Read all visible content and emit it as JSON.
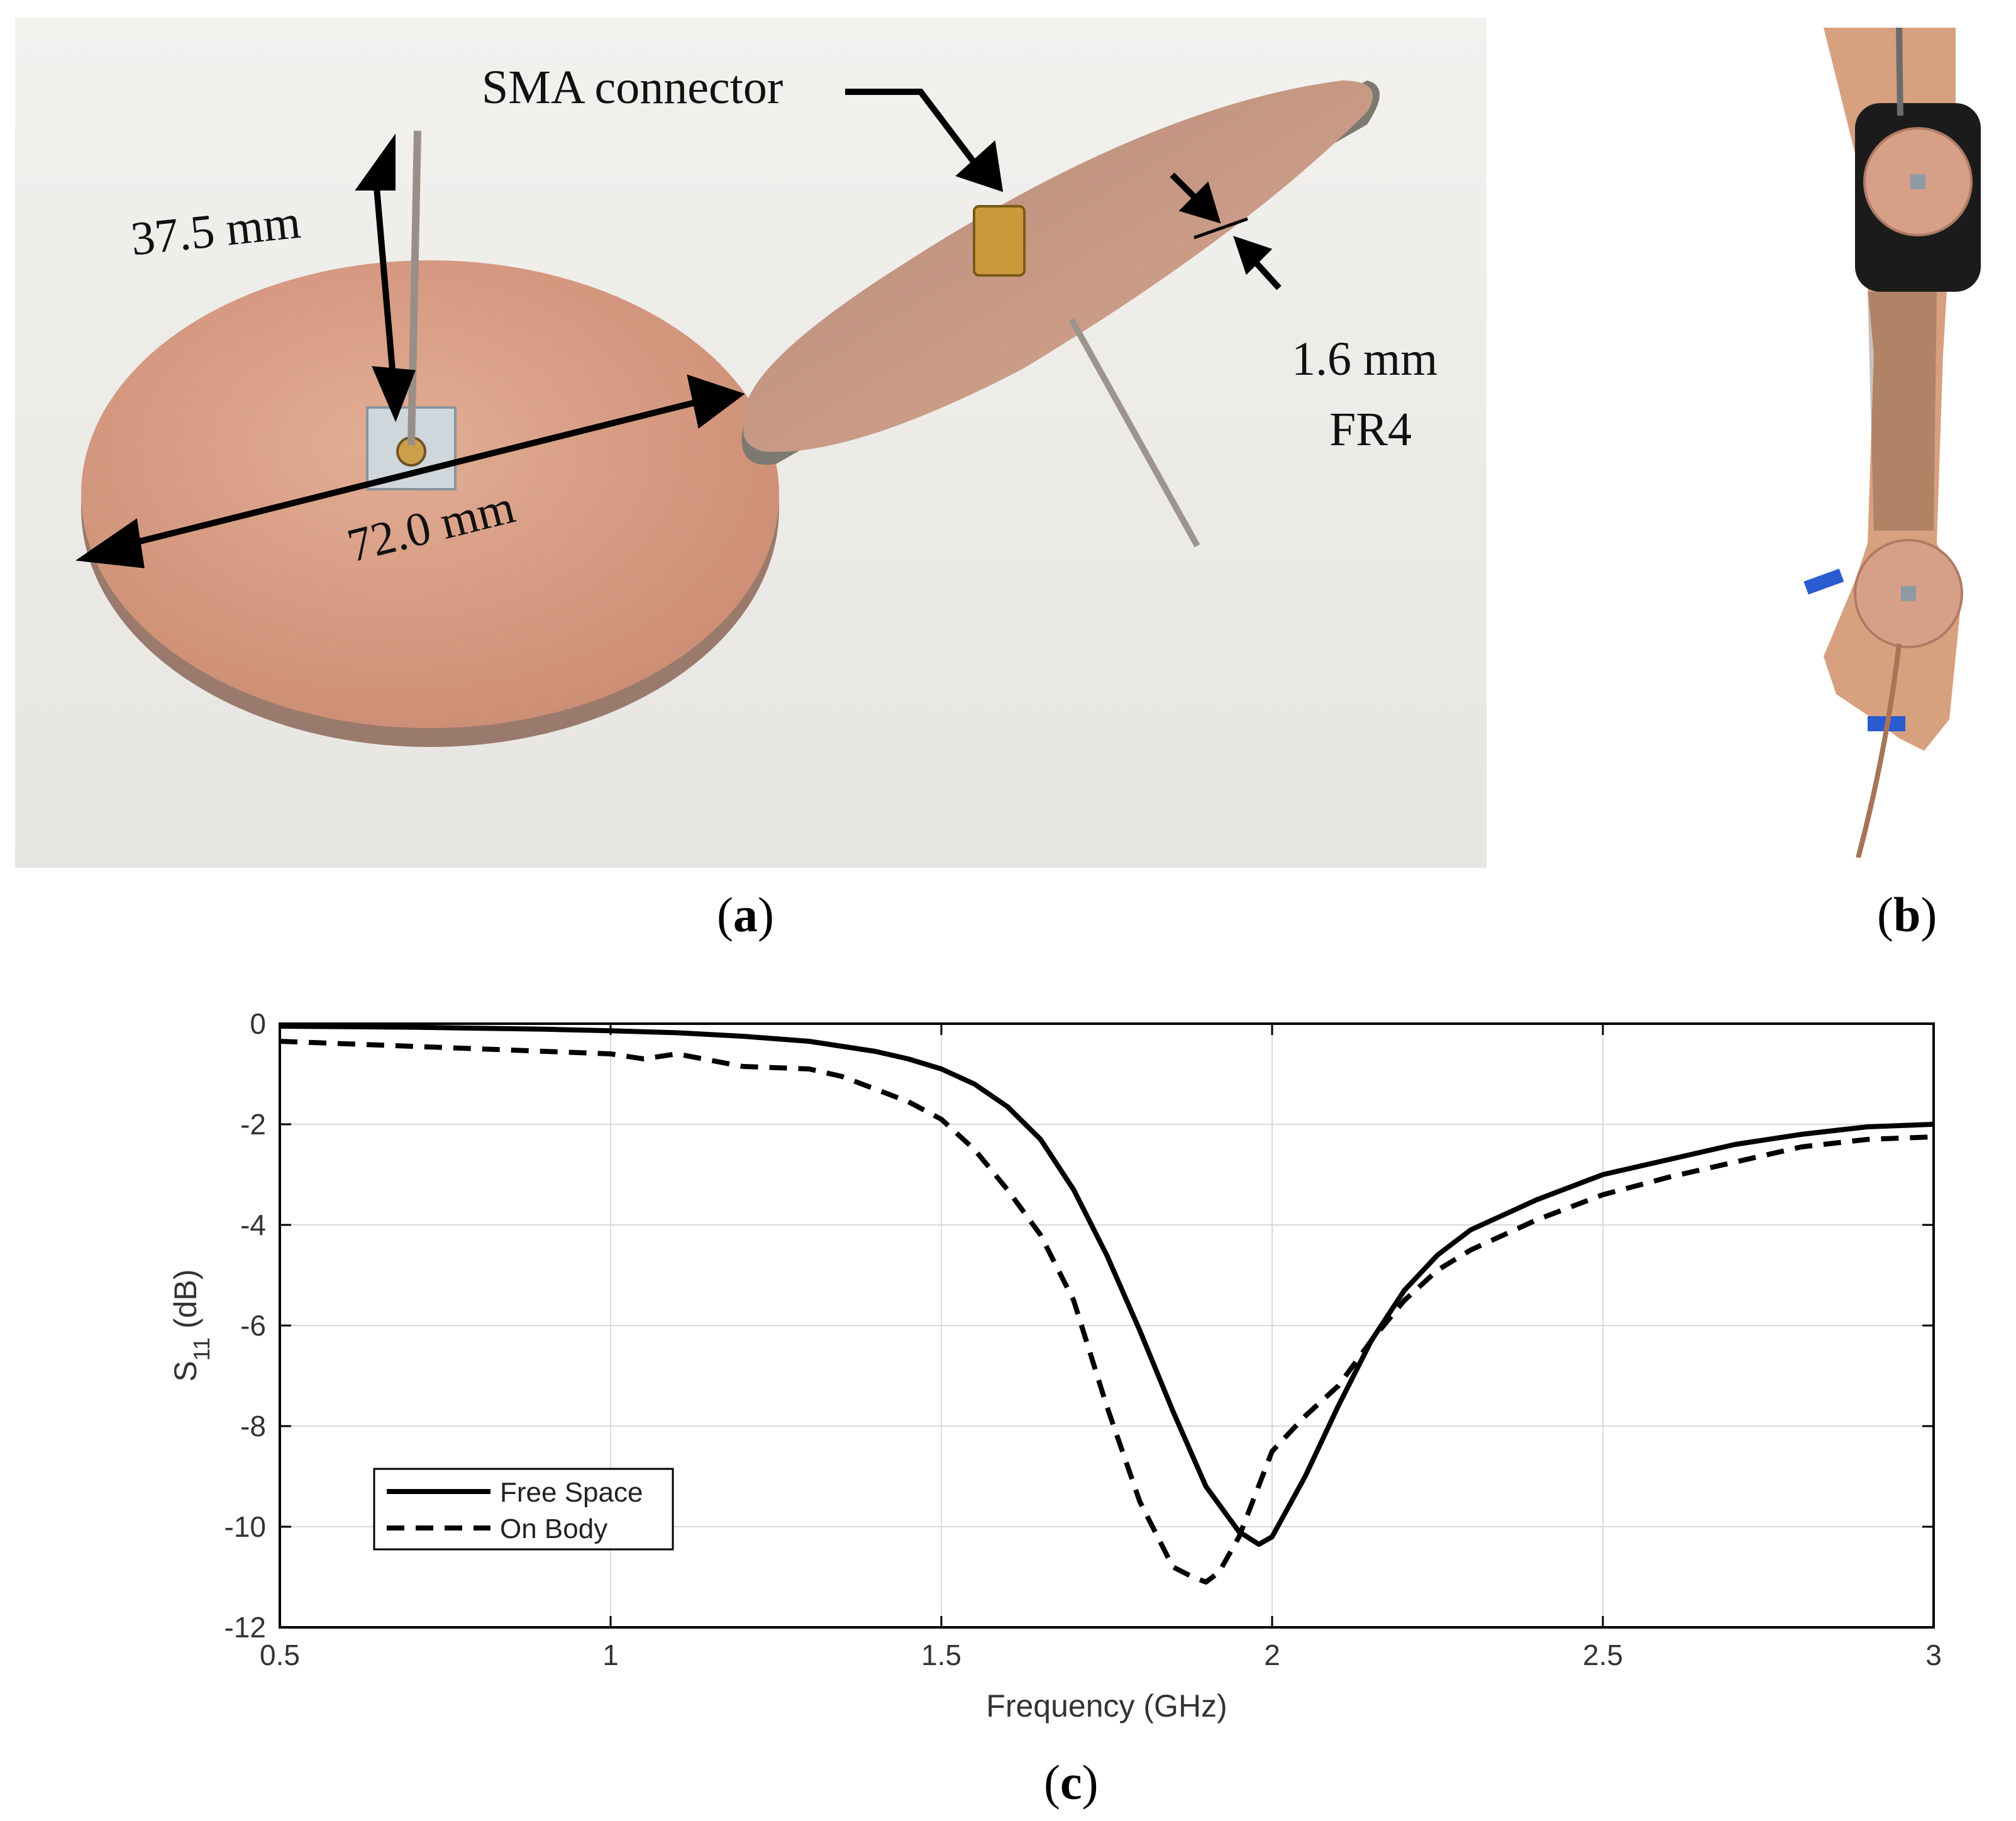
{
  "panels": {
    "a": {
      "caption_open": "(",
      "caption_letter": "a",
      "caption_close": ")",
      "annotations": {
        "sma": "SMA connector",
        "height": "37.5 mm",
        "diameter": "72.0 mm",
        "thickness": "1.6 mm",
        "substrate": "FR4"
      }
    },
    "b": {
      "caption_open": "(",
      "caption_letter": "b",
      "caption_close": ")"
    },
    "c": {
      "caption_open": "(",
      "caption_letter": "c",
      "caption_close": ")"
    }
  },
  "colors": {
    "copper": "#d49a80",
    "copper_dark": "#b97e66",
    "background_photo": "#ecebe8",
    "strap": "#1b1b1b",
    "tape": "#2a5bd1",
    "skin": "#d7a07e"
  },
  "chart_data": {
    "type": "line",
    "xlabel": "Frequency (GHz)",
    "ylabel_main": "S",
    "ylabel_sub": "11",
    "ylabel_unit": " (dB)",
    "xlim": [
      0.5,
      3
    ],
    "ylim": [
      -12,
      0
    ],
    "xticks": [
      0.5,
      1,
      1.5,
      2,
      2.5,
      3
    ],
    "xtick_labels": [
      "0.5",
      "1",
      "1.5",
      "2",
      "2.5",
      "3"
    ],
    "yticks": [
      0,
      -2,
      -4,
      -6,
      -8,
      -10,
      -12
    ],
    "ytick_labels": [
      "0",
      "-2",
      "-4",
      "-6",
      "-8",
      "-10",
      "-12"
    ],
    "grid": true,
    "legend_position": "lower-left",
    "series": [
      {
        "name": "Free Space",
        "style": "solid",
        "x": [
          0.5,
          0.6,
          0.7,
          0.8,
          0.9,
          1.0,
          1.1,
          1.2,
          1.3,
          1.4,
          1.45,
          1.5,
          1.55,
          1.6,
          1.65,
          1.7,
          1.75,
          1.8,
          1.85,
          1.9,
          1.95,
          1.98,
          2.0,
          2.05,
          2.1,
          2.15,
          2.2,
          2.25,
          2.3,
          2.4,
          2.5,
          2.6,
          2.7,
          2.8,
          2.9,
          3.0
        ],
        "values": [
          -0.05,
          -0.06,
          -0.07,
          -0.09,
          -0.11,
          -0.14,
          -0.18,
          -0.25,
          -0.35,
          -0.55,
          -0.7,
          -0.9,
          -1.2,
          -1.65,
          -2.3,
          -3.3,
          -4.6,
          -6.1,
          -7.7,
          -9.2,
          -10.1,
          -10.35,
          -10.2,
          -9.0,
          -7.6,
          -6.3,
          -5.3,
          -4.6,
          -4.1,
          -3.5,
          -3.0,
          -2.7,
          -2.4,
          -2.2,
          -2.05,
          -2.0
        ]
      },
      {
        "name": "On Body",
        "style": "dashed",
        "x": [
          0.5,
          0.6,
          0.7,
          0.8,
          0.9,
          1.0,
          1.05,
          1.1,
          1.2,
          1.3,
          1.35,
          1.4,
          1.45,
          1.5,
          1.55,
          1.6,
          1.65,
          1.7,
          1.75,
          1.8,
          1.85,
          1.88,
          1.9,
          1.92,
          1.95,
          2.0,
          2.05,
          2.1,
          2.15,
          2.2,
          2.25,
          2.3,
          2.4,
          2.5,
          2.6,
          2.7,
          2.8,
          2.9,
          3.0
        ],
        "values": [
          -0.35,
          -0.4,
          -0.45,
          -0.5,
          -0.55,
          -0.6,
          -0.7,
          -0.6,
          -0.85,
          -0.9,
          -1.05,
          -1.3,
          -1.55,
          -1.9,
          -2.5,
          -3.3,
          -4.2,
          -5.5,
          -7.6,
          -9.5,
          -10.8,
          -11.0,
          -11.1,
          -10.9,
          -10.2,
          -8.5,
          -7.8,
          -7.2,
          -6.3,
          -5.5,
          -4.9,
          -4.5,
          -3.9,
          -3.4,
          -3.05,
          -2.75,
          -2.45,
          -2.3,
          -2.25
        ]
      }
    ]
  }
}
